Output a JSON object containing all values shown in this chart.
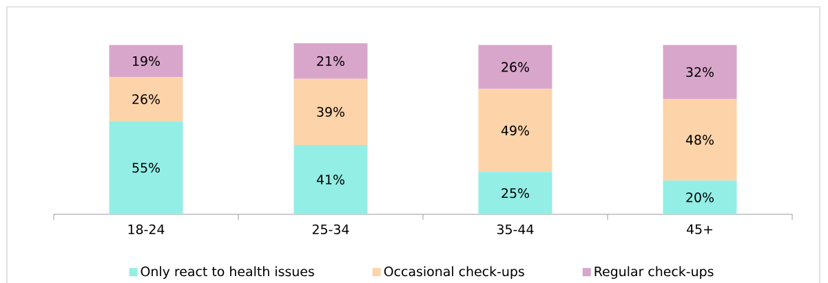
{
  "chart_data": {
    "type": "bar",
    "stacked": true,
    "legend": "bottom",
    "categories": [
      "18-24",
      "25-34",
      "35-44",
      "45+"
    ],
    "series": [
      {
        "name": "Only react to health issues",
        "color": "#93eee6",
        "values": [
          55,
          41,
          25,
          20
        ],
        "value_labels": [
          "55%",
          "41%",
          "25%",
          "20%"
        ]
      },
      {
        "name": "Occasional check-ups",
        "color": "#fdd3a9",
        "values": [
          26,
          39,
          49,
          48
        ],
        "value_labels": [
          "26%",
          "39%",
          "49%",
          "48%"
        ]
      },
      {
        "name": "Regular check-ups",
        "color": "#d9a6cb",
        "values": [
          19,
          21,
          26,
          32
        ],
        "value_labels": [
          "19%",
          "21%",
          "26%",
          "32%"
        ]
      }
    ]
  }
}
